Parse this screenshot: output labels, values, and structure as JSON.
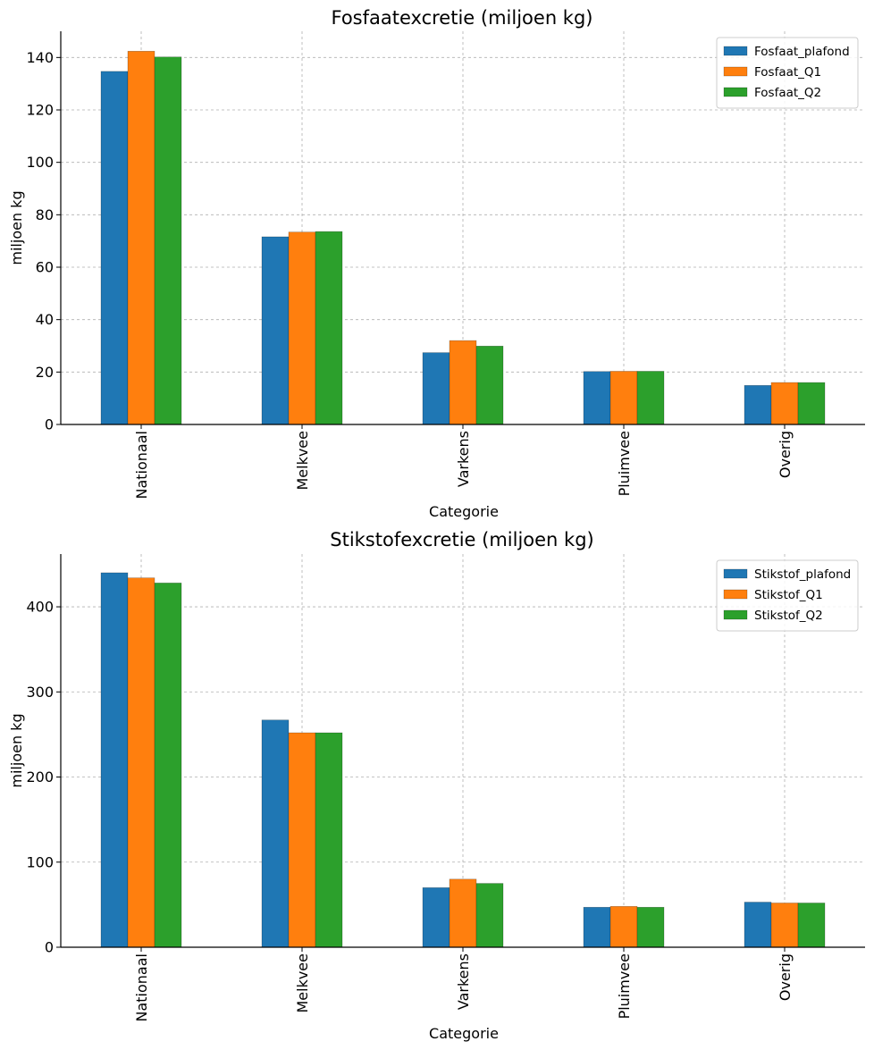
{
  "chart_data": [
    {
      "type": "bar",
      "title": "Fosfaatexcretie (miljoen kg)",
      "xlabel": "Categorie",
      "ylabel": "miljoen kg",
      "categories": [
        "Nationaal",
        "Melkvee",
        "Varkens",
        "Pluimvee",
        "Overig"
      ],
      "ylim": [
        0,
        150
      ],
      "yticks": [
        0,
        20,
        40,
        60,
        80,
        100,
        120,
        140
      ],
      "grid": true,
      "legend_position": "top-right",
      "series": [
        {
          "name": "Fosfaat_plafond",
          "color": "#1f77b4",
          "values": [
            134.7,
            71.6,
            27.4,
            20.2,
            14.9
          ]
        },
        {
          "name": "Fosfaat_Q1",
          "color": "#ff7f0e",
          "values": [
            142.4,
            73.4,
            32.0,
            20.3,
            16.0
          ]
        },
        {
          "name": "Fosfaat_Q2",
          "color": "#2ca02c",
          "values": [
            140.2,
            73.6,
            29.9,
            20.3,
            16.0
          ]
        }
      ]
    },
    {
      "type": "bar",
      "title": "Stikstofexcretie (miljoen kg)",
      "xlabel": "Categorie",
      "ylabel": "miljoen kg",
      "categories": [
        "Nationaal",
        "Melkvee",
        "Varkens",
        "Pluimvee",
        "Overig"
      ],
      "ylim": [
        0,
        462
      ],
      "yticks": [
        0,
        100,
        200,
        300,
        400
      ],
      "grid": true,
      "legend_position": "top-right",
      "series": [
        {
          "name": "Stikstof_plafond",
          "color": "#1f77b4",
          "values": [
            440,
            267,
            70,
            47,
            53
          ]
        },
        {
          "name": "Stikstof_Q1",
          "color": "#ff7f0e",
          "values": [
            434,
            252,
            80,
            48,
            52
          ]
        },
        {
          "name": "Stikstof_Q2",
          "color": "#2ca02c",
          "values": [
            428,
            252,
            75,
            47,
            52
          ]
        }
      ]
    }
  ]
}
